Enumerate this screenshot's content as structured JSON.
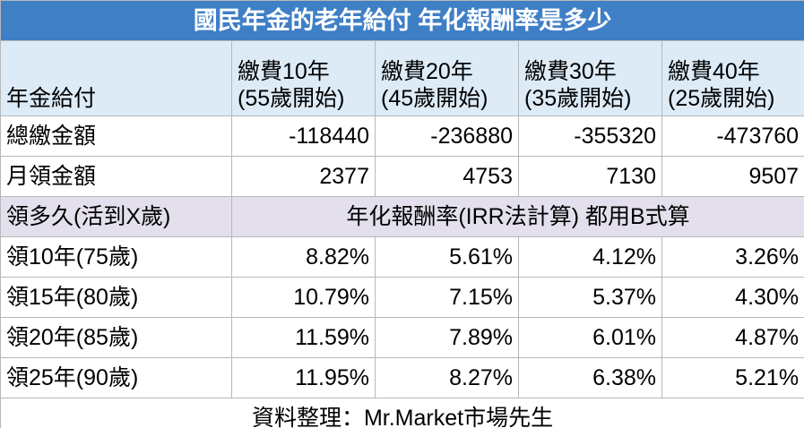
{
  "title": "國民年金的老年給付  年化報酬率是多少",
  "header": {
    "label": "年金給付",
    "columns": [
      {
        "line1": "繳費10年",
        "line2": "(55歲開始)"
      },
      {
        "line1": "繳費20年",
        "line2": "(45歲開始)"
      },
      {
        "line1": "繳費30年",
        "line2": "(35歲開始)"
      },
      {
        "line1": "繳費40年",
        "line2": "(25歲開始)"
      }
    ]
  },
  "amounts": [
    {
      "label": "總繳金額",
      "cells": [
        "-118440",
        "-236880",
        "-355320",
        "-473760"
      ]
    },
    {
      "label": "月領金額",
      "cells": [
        "2377",
        "4753",
        "7130",
        "9507"
      ]
    }
  ],
  "section": {
    "label": "領多久(活到X歲)",
    "note": "年化報酬率(IRR法計算) 都用B式算"
  },
  "rates": [
    {
      "label": "領10年(75歲)",
      "cells": [
        "8.82%",
        "5.61%",
        "4.12%",
        "3.26%"
      ]
    },
    {
      "label": "領15年(80歲)",
      "cells": [
        "10.79%",
        "7.15%",
        "5.37%",
        "4.30%"
      ]
    },
    {
      "label": "領20年(85歲)",
      "cells": [
        "11.59%",
        "7.89%",
        "6.01%",
        "4.87%"
      ]
    },
    {
      "label": "領25年(90歲)",
      "cells": [
        "11.95%",
        "8.27%",
        "6.38%",
        "5.21%"
      ]
    }
  ],
  "footer": "資料整理：Mr.Market市場先生"
}
